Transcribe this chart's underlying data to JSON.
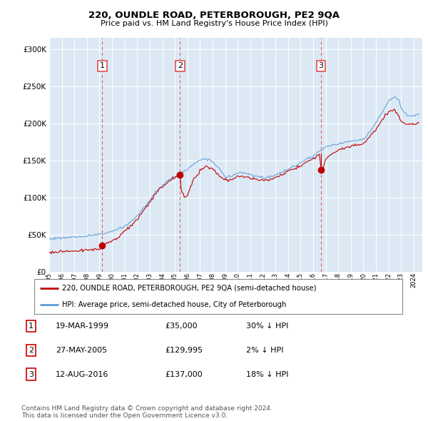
{
  "title1": "220, OUNDLE ROAD, PETERBOROUGH, PE2 9QA",
  "title2": "Price paid vs. HM Land Registry's House Price Index (HPI)",
  "ytick_values": [
    0,
    50000,
    100000,
    150000,
    200000,
    250000,
    300000
  ],
  "ylim": [
    0,
    315000
  ],
  "xlim_start": 1995.3,
  "xlim_end": 2024.7,
  "sale_dates_dec": [
    1999.22,
    2005.41,
    2016.62
  ],
  "sale_prices": [
    35000,
    129995,
    137000
  ],
  "sale_labels": [
    "1",
    "2",
    "3"
  ],
  "legend_line1": "220, OUNDLE ROAD, PETERBOROUGH, PE2 9QA (semi-detached house)",
  "legend_line2": "HPI: Average price, semi-detached house, City of Peterborough",
  "table_rows": [
    [
      "1",
      "19-MAR-1999",
      "£35,000",
      "30% ↓ HPI"
    ],
    [
      "2",
      "27-MAY-2005",
      "£129,995",
      "2% ↓ HPI"
    ],
    [
      "3",
      "12-AUG-2016",
      "£137,000",
      "18% ↓ HPI"
    ]
  ],
  "footer": "Contains HM Land Registry data © Crown copyright and database right 2024.\nThis data is licensed under the Open Government Licence v3.0.",
  "hpi_color": "#5b9bd5",
  "sold_color": "#c00000",
  "vline_color": "#e05050",
  "bg_color": "#ffffff",
  "chart_bg": "#dce9f5",
  "grid_color": "#ffffff"
}
